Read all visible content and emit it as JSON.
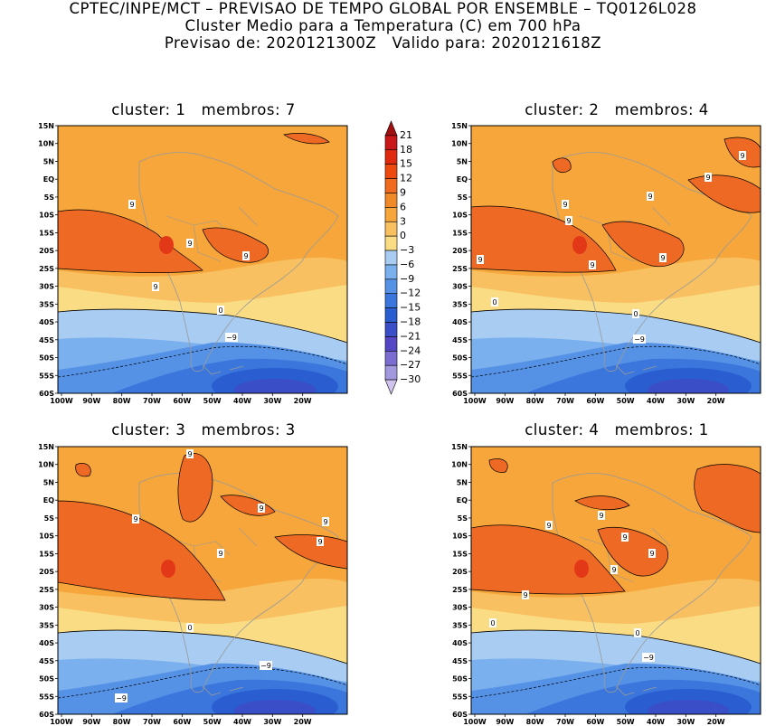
{
  "header": {
    "line1": "CPTEC/INPE/MCT – PREVISAO DE TEMPO GLOBAL POR ENSEMBLE – TQ0126L028",
    "line2": "Cluster Medio para a Temperatura (C) em 700 hPa",
    "line3": "Previsao de: 2020121300Z   Valido para: 2020121618Z"
  },
  "panels": [
    {
      "title": "cluster: 1   membros: 7"
    },
    {
      "title": "cluster: 2   membros: 4"
    },
    {
      "title": "cluster: 3   membros: 3"
    },
    {
      "title": "cluster: 4   membros: 1"
    }
  ],
  "axes": {
    "lat_ticks": [
      "15N",
      "10N",
      "5N",
      "EQ",
      "5S",
      "10S",
      "15S",
      "20S",
      "25S",
      "30S",
      "35S",
      "40S",
      "45S",
      "50S",
      "55S",
      "60S"
    ],
    "lon_ticks": [
      "100W",
      "90W",
      "80W",
      "70W",
      "60W",
      "50W",
      "40W",
      "30W",
      "20W"
    ]
  },
  "colorbar": {
    "levels": [
      "21",
      "18",
      "15",
      "12",
      "9",
      "6",
      "3",
      "0",
      "−3",
      "−6",
      "−9",
      "−12",
      "−15",
      "−18",
      "−21",
      "−24",
      "−27",
      "−30"
    ],
    "colors": [
      "#a01010",
      "#c81818",
      "#e02a10",
      "#ee4a10",
      "#f06a20",
      "#f08a28",
      "#f6a63a",
      "#f8c060",
      "#fadc84",
      "#a8ccf2",
      "#7ab0ee",
      "#5592e6",
      "#3a76dc",
      "#2a5ed0",
      "#3a4ec8",
      "#5446c4",
      "#7a6cd0",
      "#a298de",
      "#d0c4ee"
    ]
  },
  "contour_labels": {
    "p1": [
      "9",
      "9",
      "9",
      "9",
      "0",
      "−9"
    ],
    "p2": [
      "9",
      "9",
      "9",
      "9",
      "9",
      "9",
      "9",
      "9",
      "0",
      "0",
      "−9"
    ],
    "p3": [
      "9",
      "9",
      "9",
      "9",
      "9",
      "9",
      "0",
      "−9",
      "−9"
    ],
    "p4": [
      "9",
      "9",
      "9",
      "9",
      "9",
      "9",
      "0",
      "0",
      "−9"
    ]
  }
}
